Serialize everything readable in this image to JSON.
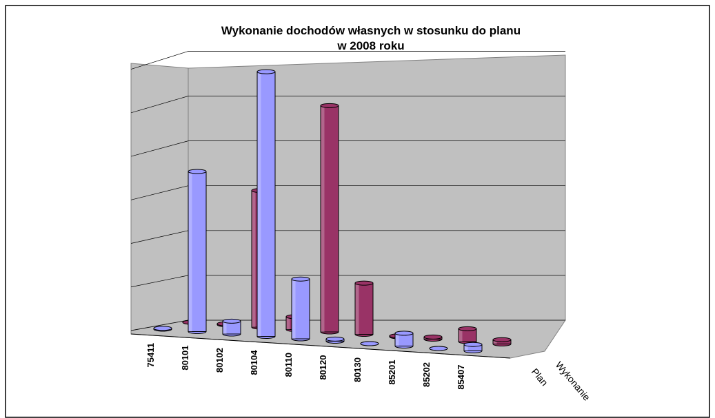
{
  "chart_data": {
    "type": "bar3d",
    "title": [
      "Wykonanie dochodów własnych w stosunku do planu",
      "w 2008 roku"
    ],
    "categories": [
      "75411",
      "80101",
      "80102",
      "80104",
      "80110",
      "80120",
      "80130",
      "85201",
      "85202",
      "85407"
    ],
    "series": [
      {
        "name": "Plan",
        "color": "#9999ff",
        "values": [
          0.02,
          3.75,
          0.3,
          6.2,
          1.4,
          0.05,
          0,
          0.3,
          0,
          0.15
        ]
      },
      {
        "name": "Wykonanie",
        "color": "#993366",
        "values": [
          0,
          0.02,
          3.2,
          0.3,
          5.3,
          1.2,
          0.02,
          0.05,
          0.3,
          0.1
        ]
      }
    ],
    "ylim": [
      0,
      6
    ],
    "yticks": [
      0,
      1,
      2,
      3,
      4,
      5,
      6
    ],
    "grid": true
  }
}
